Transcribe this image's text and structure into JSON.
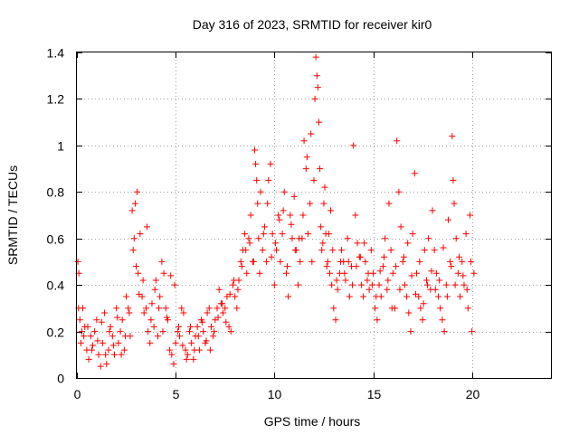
{
  "chart_data": {
    "type": "scatter",
    "title": "Day 316 of 2023, SRMTID for receiver kir0",
    "xlabel": "GPS time / hours",
    "ylabel": "SRMTID / TECUs",
    "xlim": [
      0,
      24
    ],
    "ylim": [
      0,
      1.4
    ],
    "xticks": [
      0,
      5,
      10,
      15,
      20
    ],
    "yticks": [
      0,
      0.2,
      0.4,
      0.6,
      0.8,
      1,
      1.2,
      1.4
    ],
    "xtick_labels": [
      "0",
      "5",
      "10",
      "15",
      "20"
    ],
    "ytick_labels": [
      "0",
      "0.2",
      "0.4",
      "0.6",
      "0.8",
      "1",
      "1.2",
      "1.4"
    ],
    "grid": true,
    "marker": "+",
    "color": "#ff0000",
    "series": [
      {
        "name": "SRMTID",
        "x": [
          0.05,
          0.1,
          0.15,
          0.2,
          0.25,
          0.3,
          0.4,
          0.5,
          0.6,
          0.7,
          0.8,
          0.9,
          1.0,
          1.1,
          1.2,
          1.3,
          1.4,
          1.5,
          1.6,
          1.7,
          1.8,
          1.9,
          2.0,
          2.1,
          2.2,
          2.3,
          2.4,
          2.5,
          2.6,
          2.7,
          2.8,
          2.85,
          2.9,
          2.95,
          3.0,
          3.05,
          3.1,
          3.2,
          3.3,
          3.4,
          3.5,
          3.6,
          3.7,
          3.8,
          3.9,
          4.0,
          4.1,
          4.2,
          4.3,
          4.4,
          4.5,
          4.6,
          4.7,
          4.8,
          4.9,
          5.0,
          5.1,
          5.2,
          5.3,
          5.4,
          5.5,
          5.6,
          5.7,
          5.8,
          5.9,
          6.0,
          6.1,
          6.2,
          6.3,
          6.4,
          6.5,
          6.6,
          6.7,
          6.8,
          6.9,
          7.0,
          7.1,
          7.2,
          7.3,
          7.4,
          7.5,
          7.6,
          7.7,
          7.8,
          7.9,
          8.0,
          8.1,
          8.2,
          8.3,
          8.4,
          8.5,
          8.6,
          8.7,
          8.8,
          8.9,
          9.0,
          9.05,
          9.1,
          9.15,
          9.2,
          9.3,
          9.4,
          9.5,
          9.6,
          9.7,
          9.8,
          9.9,
          10.0,
          10.1,
          10.2,
          10.3,
          10.4,
          10.5,
          10.6,
          10.7,
          10.8,
          10.9,
          11.0,
          11.1,
          11.2,
          11.3,
          11.4,
          11.5,
          11.6,
          11.7,
          11.8,
          11.9,
          12.0,
          12.05,
          12.1,
          12.15,
          12.2,
          12.25,
          12.3,
          12.4,
          12.5,
          12.6,
          12.7,
          12.8,
          12.9,
          13.0,
          13.1,
          13.2,
          13.3,
          13.4,
          13.5,
          13.6,
          13.7,
          13.8,
          13.9,
          14.0,
          14.1,
          14.2,
          14.3,
          14.4,
          14.5,
          14.6,
          14.7,
          14.8,
          14.9,
          15.0,
          15.1,
          15.2,
          15.3,
          15.4,
          15.5,
          15.6,
          15.7,
          15.8,
          15.9,
          16.0,
          16.1,
          16.2,
          16.3,
          16.4,
          16.5,
          16.6,
          16.7,
          16.8,
          16.9,
          17.0,
          17.1,
          17.2,
          17.3,
          17.4,
          17.5,
          17.6,
          17.7,
          17.8,
          17.9,
          18.0,
          18.1,
          18.2,
          18.3,
          18.4,
          18.5,
          18.6,
          18.7,
          18.8,
          18.9,
          19.0,
          19.05,
          19.1,
          19.2,
          19.3,
          19.4,
          19.5,
          19.6,
          19.7,
          19.8,
          19.9,
          20.0,
          20.1,
          0.08,
          0.35,
          0.55,
          0.75,
          1.05,
          1.25,
          1.45,
          1.65,
          1.85,
          2.05,
          2.25,
          2.45,
          2.65,
          3.15,
          3.35,
          3.55,
          3.75,
          3.95,
          4.15,
          4.35,
          4.55,
          4.75,
          4.95,
          5.15,
          5.35,
          5.55,
          5.75,
          5.95,
          6.15,
          6.35,
          6.55,
          6.75,
          6.95,
          7.15,
          7.35,
          7.55,
          7.75,
          7.95,
          8.15,
          8.35,
          8.55,
          8.75,
          8.95,
          9.25,
          9.45,
          9.65,
          9.85,
          10.05,
          10.25,
          10.45,
          10.65,
          10.85,
          11.05,
          11.25,
          11.45,
          11.65,
          11.85,
          12.35,
          12.45,
          12.55,
          12.65,
          12.75,
          12.85,
          12.95,
          13.15,
          13.35,
          13.55,
          13.75,
          13.95,
          14.15,
          14.35,
          14.55,
          14.75,
          14.95,
          15.15,
          15.35,
          15.55,
          15.75,
          15.95,
          16.15,
          16.35,
          16.55,
          16.75,
          16.95,
          17.15,
          17.35,
          17.55,
          17.75,
          17.95,
          18.15,
          18.35,
          18.55,
          18.75,
          18.95,
          19.15,
          19.35,
          19.55,
          19.75,
          19.95
        ],
        "y": [
          0.5,
          0.45,
          0.25,
          0.15,
          0.2,
          0.3,
          0.22,
          0.12,
          0.08,
          0.18,
          0.14,
          0.2,
          0.25,
          0.1,
          0.05,
          0.15,
          0.28,
          0.06,
          0.12,
          0.22,
          0.18,
          0.1,
          0.3,
          0.15,
          0.2,
          0.25,
          0.12,
          0.35,
          0.3,
          0.18,
          0.72,
          0.55,
          0.6,
          0.75,
          0.48,
          0.8,
          0.45,
          0.62,
          0.35,
          0.28,
          0.3,
          0.2,
          0.15,
          0.32,
          0.22,
          0.42,
          0.18,
          0.35,
          0.5,
          0.45,
          0.3,
          0.25,
          0.12,
          0.1,
          0.06,
          0.15,
          0.2,
          0.18,
          0.3,
          0.28,
          0.12,
          0.1,
          0.2,
          0.15,
          0.08,
          0.18,
          0.22,
          0.12,
          0.25,
          0.2,
          0.15,
          0.28,
          0.3,
          0.22,
          0.18,
          0.25,
          0.3,
          0.38,
          0.32,
          0.28,
          0.3,
          0.35,
          0.22,
          0.2,
          0.4,
          0.35,
          0.3,
          0.42,
          0.5,
          0.55,
          0.62,
          0.45,
          0.6,
          0.7,
          0.5,
          0.98,
          0.92,
          0.85,
          0.75,
          0.6,
          0.8,
          0.55,
          0.65,
          0.5,
          0.85,
          0.92,
          0.62,
          0.4,
          0.55,
          0.7,
          0.5,
          0.62,
          0.8,
          0.45,
          0.35,
          0.7,
          0.6,
          0.78,
          0.55,
          0.4,
          0.5,
          0.6,
          1.02,
          0.9,
          0.62,
          0.75,
          0.5,
          0.85,
          1.2,
          1.38,
          1.3,
          1.25,
          1.1,
          0.9,
          0.55,
          0.75,
          0.62,
          0.5,
          0.45,
          0.4,
          0.3,
          0.25,
          0.38,
          0.45,
          0.55,
          0.5,
          0.42,
          0.6,
          0.35,
          0.48,
          1.0,
          0.7,
          0.58,
          0.52,
          0.4,
          0.35,
          0.5,
          0.42,
          0.38,
          0.55,
          0.45,
          0.3,
          0.25,
          0.4,
          0.35,
          0.48,
          0.6,
          0.38,
          0.75,
          0.55,
          0.45,
          0.3,
          1.02,
          0.8,
          0.65,
          0.5,
          0.4,
          0.35,
          0.28,
          0.2,
          0.62,
          0.88,
          0.45,
          0.35,
          0.3,
          0.25,
          0.55,
          0.42,
          0.6,
          0.38,
          0.72,
          0.55,
          0.45,
          0.35,
          0.3,
          0.25,
          0.2,
          0.4,
          0.68,
          0.5,
          1.04,
          0.85,
          0.75,
          0.6,
          0.45,
          0.35,
          0.5,
          0.4,
          0.62,
          0.3,
          0.7,
          0.2,
          0.45,
          0.3,
          0.18,
          0.22,
          0.12,
          0.16,
          0.24,
          0.1,
          0.2,
          0.14,
          0.26,
          0.1,
          0.18,
          0.28,
          0.36,
          0.42,
          0.65,
          0.25,
          0.38,
          0.3,
          0.2,
          0.26,
          0.44,
          0.4,
          0.22,
          0.14,
          0.08,
          0.22,
          0.12,
          0.18,
          0.24,
          0.16,
          0.12,
          0.2,
          0.26,
          0.32,
          0.24,
          0.36,
          0.42,
          0.38,
          0.48,
          0.55,
          0.58,
          0.5,
          0.45,
          0.62,
          0.75,
          0.52,
          0.58,
          0.68,
          0.72,
          0.48,
          0.66,
          0.55,
          0.6,
          0.7,
          0.95,
          1.05,
          0.65,
          0.58,
          0.82,
          0.48,
          0.62,
          0.72,
          0.55,
          0.42,
          0.5,
          0.45,
          0.5,
          0.4,
          0.48,
          0.52,
          0.58,
          0.45,
          0.4,
          0.35,
          0.46,
          0.52,
          0.42,
          0.3,
          0.48,
          0.38,
          0.52,
          0.58,
          0.44,
          0.36,
          0.5,
          0.32,
          0.4,
          0.46,
          0.38,
          0.42,
          0.56,
          0.35,
          0.48,
          0.4,
          0.52,
          0.44,
          0.38,
          0.5
        ]
      }
    ]
  }
}
